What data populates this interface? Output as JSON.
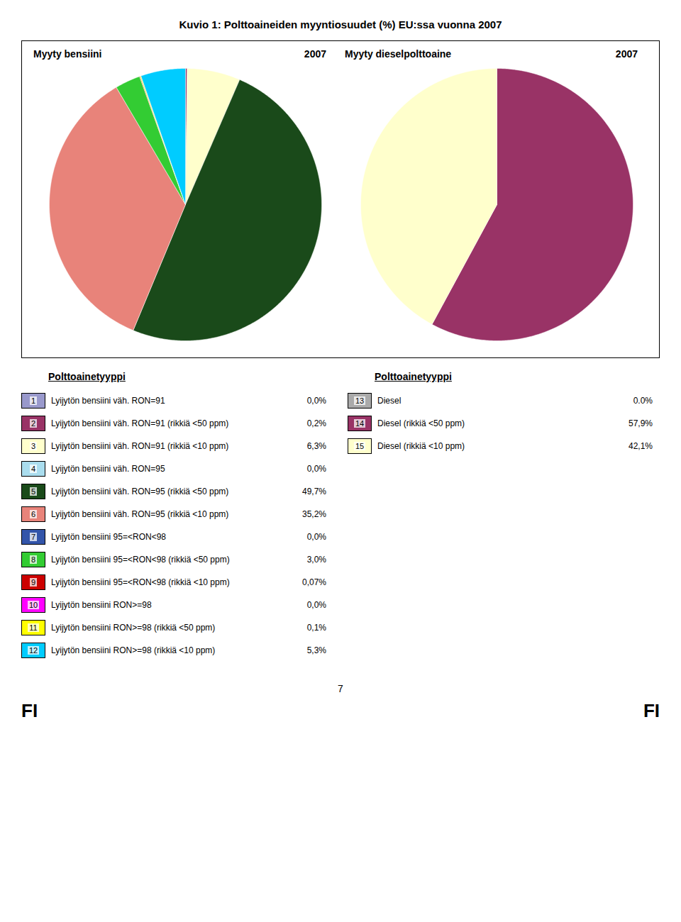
{
  "title": "Kuvio 1:      Polttoaineiden myyntiosuudet (%) EU:ssa vuonna 2007",
  "annotations": [
    "7",
    "FI",
    "FI"
  ],
  "chart_data": [
    {
      "type": "pie",
      "title": "Myyty bensiini",
      "subtitle": "2007",
      "legend": "bottom",
      "legend_title": "Polttoainetyyppi",
      "categories": [
        "Lyijytön bensiini väh. RON=91",
        "Lyijytön bensiini väh. RON=91 (rikkiä <50 ppm)",
        "Lyijytön bensiini väh. RON=91 (rikkiä <10 ppm)",
        "Lyijytön bensiini väh. RON=95",
        "Lyijytön bensiini väh. RON=95 (rikkiä <50 ppm)",
        "Lyijytön bensiini väh. RON=95 (rikkiä <10 ppm)",
        "Lyijytön bensiini 95=<RON<98",
        "Lyijytön bensiini 95=<RON<98 (rikkiä <50 ppm)",
        "Lyijytön bensiini 95=<RON<98 (rikkiä <10 ppm)",
        "Lyijytön bensiini RON>=98",
        "Lyijytön bensiini RON>=98 (rikkiä <50 ppm)",
        "Lyijytön bensiini RON>=98 (rikkiä <10 ppm)"
      ],
      "numbers": [
        1,
        2,
        3,
        4,
        5,
        6,
        7,
        8,
        9,
        10,
        11,
        12
      ],
      "values": [
        0.0,
        0.2,
        6.3,
        0.0,
        49.7,
        35.2,
        0.0,
        3.0,
        0.07,
        0.0,
        0.1,
        5.3
      ],
      "value_labels": [
        "0,0%",
        "0,2%",
        "6,3%",
        "0,0%",
        "49,7%",
        "35,2%",
        "0,0%",
        "3,0%",
        "0,07%",
        "0,0%",
        "0,1%",
        "5,3%"
      ],
      "colors": [
        "#9999cc",
        "#993366",
        "#ffffcc",
        "#aaddee",
        "#1a4a1a",
        "#e8837a",
        "#3355aa",
        "#33cc33",
        "#cc0000",
        "#ff00ff",
        "#ffff00",
        "#00ccff"
      ]
    },
    {
      "type": "pie",
      "title": "Myyty dieselpolttoaine",
      "subtitle": "2007",
      "legend": "bottom",
      "legend_title": "Polttoainetyyppi",
      "categories": [
        "Diesel",
        "Diesel (rikkiä <50 ppm)",
        "Diesel (rikkiä <10 ppm)"
      ],
      "numbers": [
        13,
        14,
        15
      ],
      "values": [
        0.0,
        57.9,
        42.1
      ],
      "value_labels": [
        "0.0%",
        "57,9%",
        "42,1%"
      ],
      "colors": [
        "#aaaaaa",
        "#993366",
        "#ffffcc"
      ]
    }
  ]
}
